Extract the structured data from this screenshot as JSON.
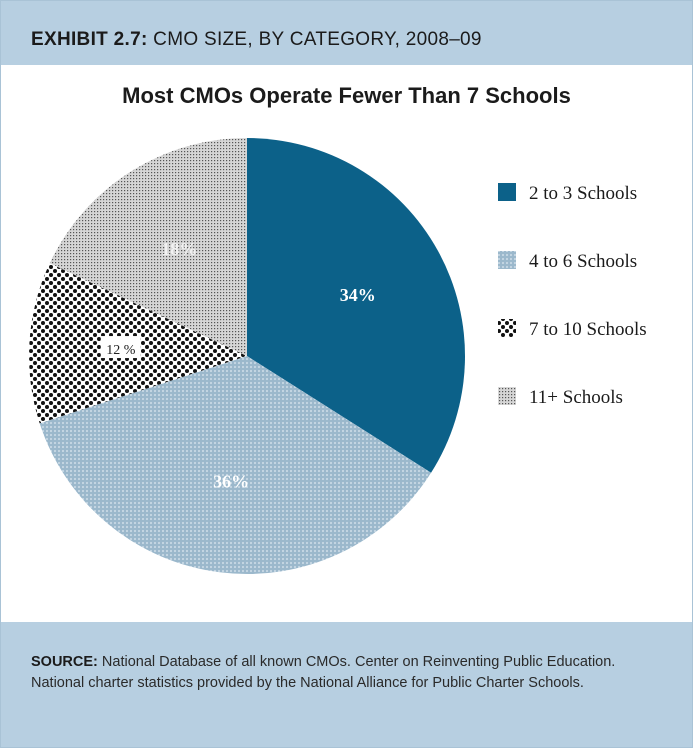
{
  "header": {
    "exhibit_label": "EXHIBIT 2.7:",
    "exhibit_title": "CMO SIZE, BY CATEGORY, 2008–09"
  },
  "footer": {
    "source_label": "SOURCE:",
    "source_text": "National Database of all known CMOs. Center on Reinventing Public Education. National charter statistics provided by the National Alliance for Public Charter Schools."
  },
  "chart_data": {
    "type": "pie",
    "title": "Most CMOs Operate Fewer Than 7 Schools",
    "legend_position": "right",
    "slices": [
      {
        "label": "2 to 3 Schools",
        "value": 34,
        "display": "34%",
        "color": "#0c6189",
        "pattern": "solid"
      },
      {
        "label": "4 to 6 Schools",
        "value": 36,
        "display": "36%",
        "color": "#9bb8cc",
        "pattern": "dots"
      },
      {
        "label": "7 to 10 Schools",
        "value": 12,
        "display": "12 %",
        "color": "#111111",
        "pattern": "checker"
      },
      {
        "label": "11+ Schools",
        "value": 18,
        "display": "18%",
        "color": "#c7c7c7",
        "pattern": "fine-dots"
      }
    ]
  }
}
